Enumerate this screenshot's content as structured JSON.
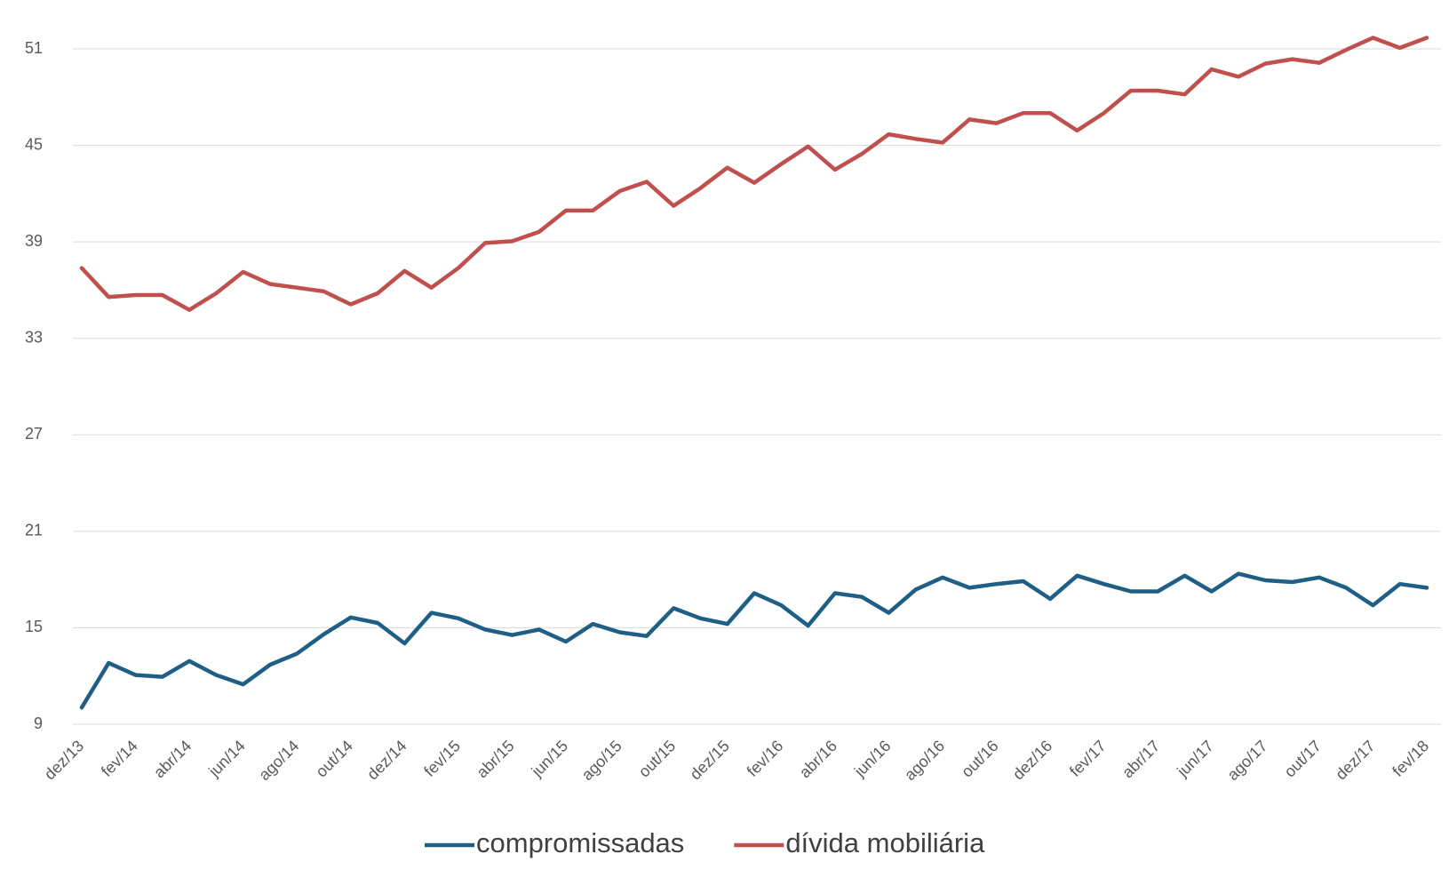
{
  "chart_data": {
    "type": "line",
    "categories": [
      "dez/13",
      null,
      "fev/14",
      null,
      "abr/14",
      null,
      "jun/14",
      null,
      "ago/14",
      null,
      "out/14",
      null,
      "dez/14",
      null,
      "fev/15",
      null,
      "abr/15",
      null,
      "jun/15",
      null,
      "ago/15",
      null,
      "out/15",
      null,
      "dez/15",
      null,
      "fev/16",
      null,
      "abr/16",
      null,
      "jun/16",
      null,
      "ago/16",
      null,
      "out/16",
      null,
      "dez/16",
      null,
      "fev/17",
      null,
      "abr/17",
      null,
      "jun/17",
      null,
      "ago/17",
      null,
      "out/17",
      null,
      "dez/17",
      null,
      "fev/18"
    ],
    "series": [
      {
        "name": "compromissadas",
        "color": "#1f5f86",
        "values": [
          10.04,
          12.81,
          12.06,
          11.95,
          12.93,
          12.06,
          11.48,
          12.7,
          13.39,
          14.6,
          15.64,
          15.3,
          14.03,
          15.93,
          15.59,
          14.89,
          14.55,
          14.89,
          14.14,
          15.24,
          14.72,
          14.49,
          16.22,
          15.59,
          15.24,
          17.15,
          16.4,
          15.13,
          17.15,
          16.92,
          15.93,
          17.38,
          18.13,
          17.49,
          17.72,
          17.9,
          16.8,
          18.24,
          17.72,
          17.26,
          17.26,
          18.24,
          17.26,
          18.36,
          17.95,
          17.84,
          18.13,
          17.49,
          16.4,
          17.72,
          17.49
        ]
      },
      {
        "name": "dívida mobiliária",
        "color": "#c0504d",
        "values": [
          37.37,
          35.57,
          35.69,
          35.69,
          34.77,
          35.8,
          37.13,
          36.38,
          36.15,
          35.92,
          35.11,
          35.8,
          37.19,
          36.15,
          37.37,
          38.93,
          39.04,
          39.62,
          40.95,
          40.95,
          42.16,
          42.74,
          41.24,
          42.34,
          43.61,
          42.68,
          43.84,
          44.93,
          43.49,
          44.47,
          45.69,
          45.4,
          45.17,
          46.61,
          46.38,
          47.01,
          47.01,
          45.92,
          47.01,
          48.4,
          48.4,
          48.17,
          49.73,
          49.27,
          50.08,
          50.36,
          50.13,
          50.94,
          51.69,
          51.06,
          51.69
        ]
      }
    ],
    "ylim": [
      9,
      51
    ],
    "yticks": [
      9,
      15,
      21,
      27,
      33,
      39,
      45,
      51
    ],
    "grid": true,
    "legend": "bottom"
  }
}
